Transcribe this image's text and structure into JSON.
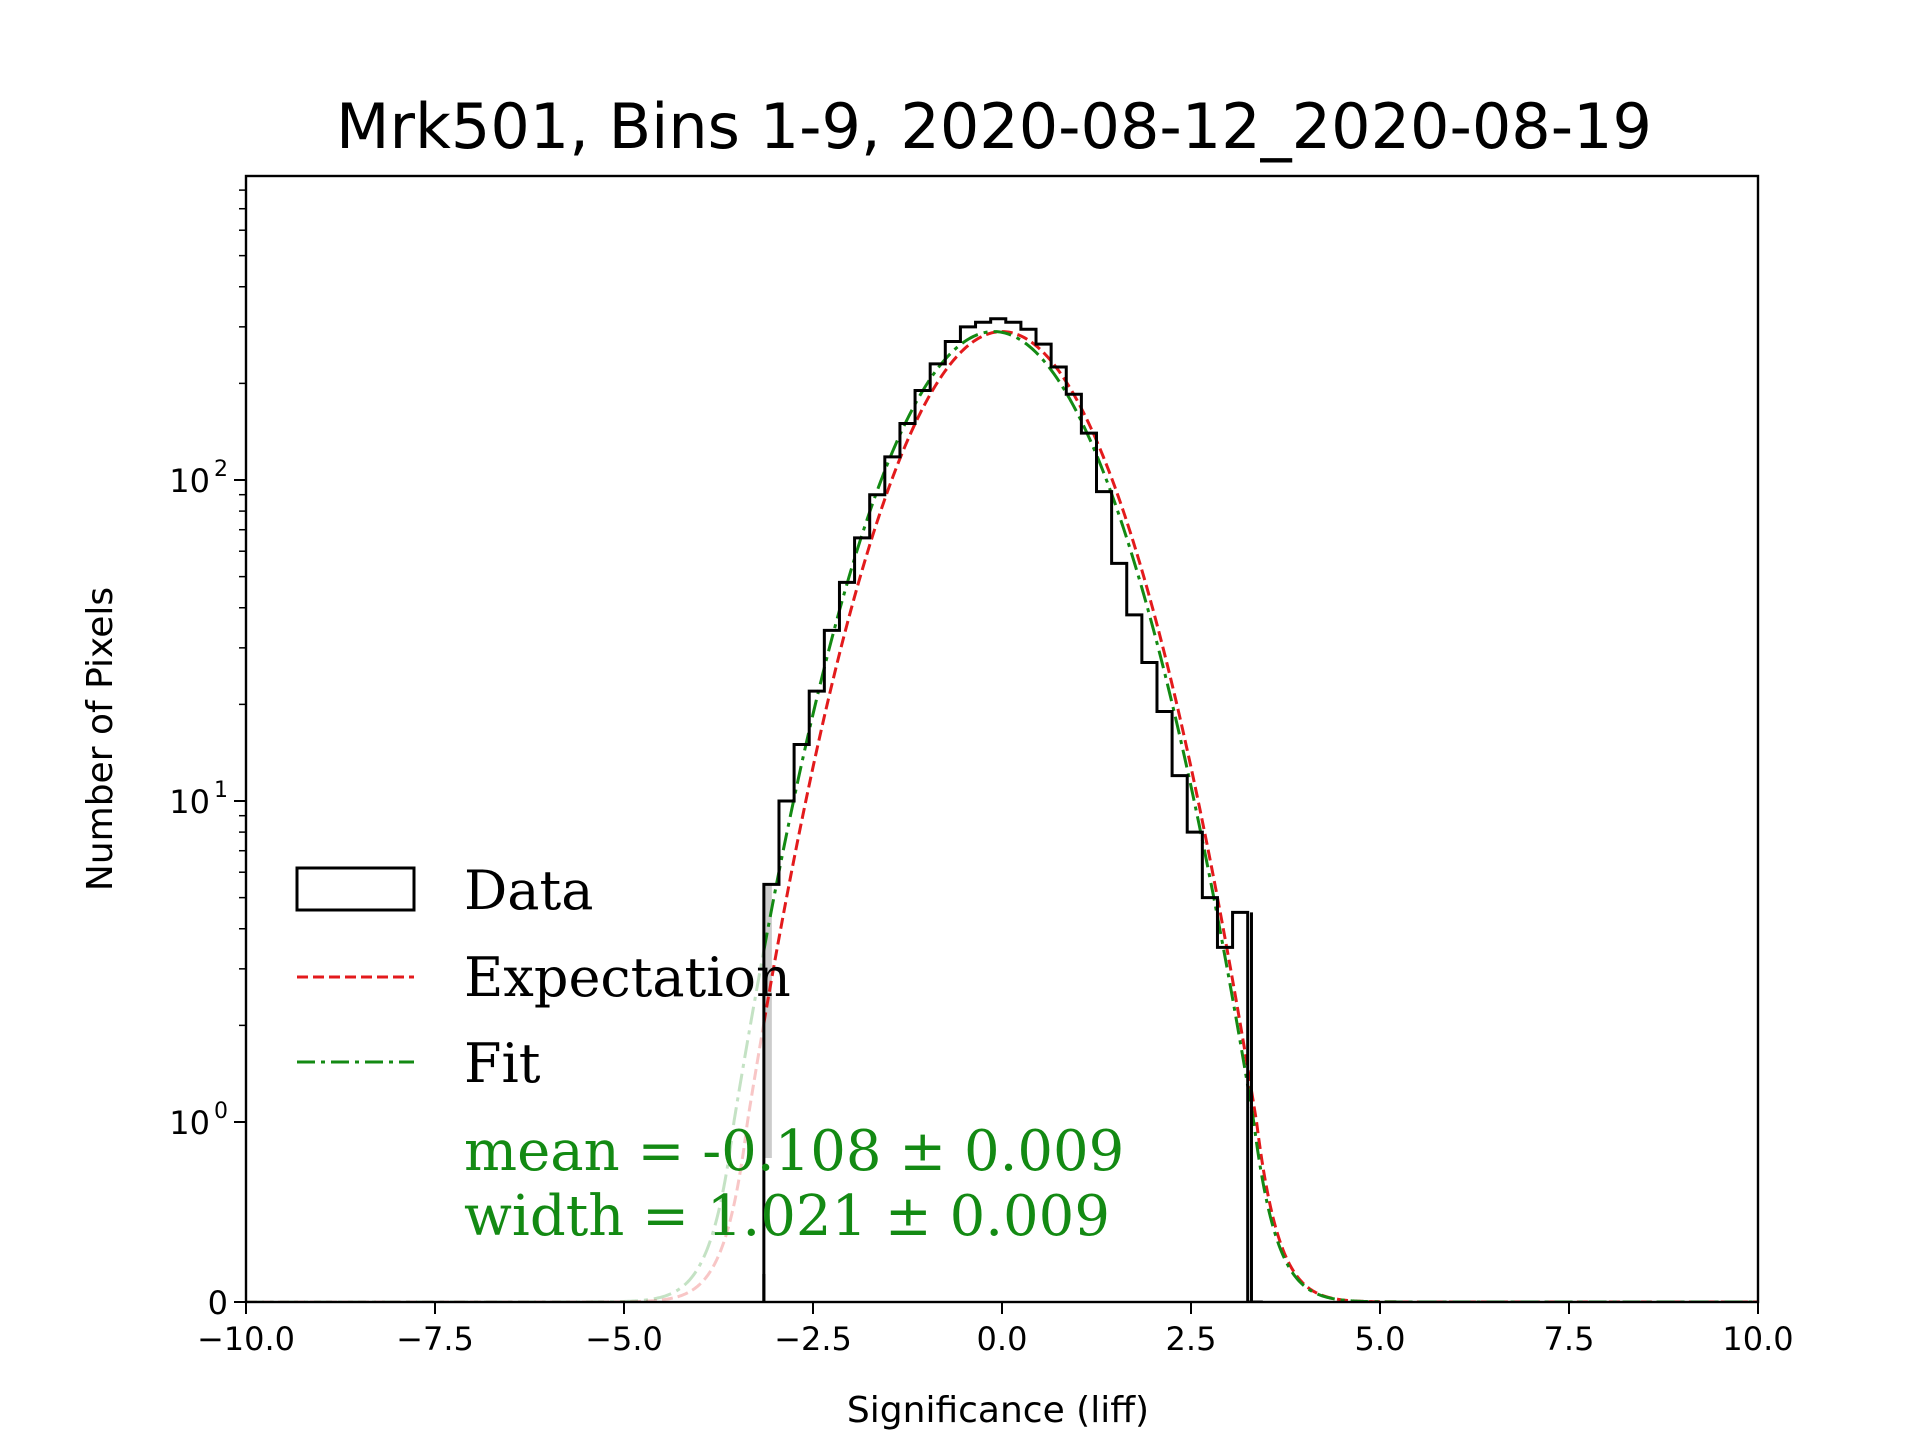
{
  "chart_data": {
    "type": "histogram",
    "title": "Mrk501, Bins 1-9, 2020-08-12_2020-08-19",
    "xlabel": "Significance (liff)",
    "ylabel": "Number of Pixels",
    "xlim": [
      -10,
      10
    ],
    "yscale": "symlog",
    "ylim_top": 700,
    "x_ticks": [
      {
        "value": -10,
        "label": "−10.0"
      },
      {
        "value": -7.5,
        "label": "−7.5"
      },
      {
        "value": -5,
        "label": "−5.0"
      },
      {
        "value": -2.5,
        "label": "−2.5"
      },
      {
        "value": 0,
        "label": "0.0"
      },
      {
        "value": 2.5,
        "label": "2.5"
      },
      {
        "value": 5,
        "label": "5.0"
      },
      {
        "value": 7.5,
        "label": "7.5"
      },
      {
        "value": 10,
        "label": "10.0"
      }
    ],
    "y_ticks": [
      {
        "value": 0,
        "label": "0"
      },
      {
        "value": 1,
        "label": "10",
        "exp": "0"
      },
      {
        "value": 10,
        "label": "10",
        "exp": "1"
      },
      {
        "value": 100,
        "label": "10",
        "exp": "2"
      }
    ],
    "series": [
      {
        "name": "Data",
        "style": "step",
        "color": "#000000",
        "x": [
          -3.15,
          -2.95,
          -2.75,
          -2.55,
          -2.35,
          -2.15,
          -1.95,
          -1.75,
          -1.55,
          -1.35,
          -1.15,
          -0.95,
          -0.75,
          -0.55,
          -0.35,
          -0.15,
          0.05,
          0.25,
          0.45,
          0.65,
          0.85,
          1.05,
          1.25,
          1.45,
          1.65,
          1.85,
          2.05,
          2.25,
          2.45,
          2.65,
          2.85,
          3.05,
          3.25
        ],
        "values": [
          5.5,
          10,
          15,
          22,
          34,
          48,
          66,
          90,
          118,
          150,
          190,
          230,
          270,
          300,
          310,
          318,
          310,
          295,
          265,
          225,
          185,
          140,
          92,
          55,
          38,
          27,
          19,
          12,
          8,
          5,
          3.5,
          4.5,
          0
        ]
      },
      {
        "name": "Expectation",
        "style": "dashed",
        "color": "#e31a1c",
        "mean": 0.0,
        "width": 1.0
      },
      {
        "name": "Fit",
        "style": "dashdot",
        "color": "#138a13",
        "mean": -0.108,
        "width": 1.021
      }
    ],
    "legend": {
      "placement": "lower-left",
      "entries": [
        "Data",
        "Expectation",
        "Fit"
      ]
    },
    "annotations": [
      "mean = -0.108 ± 0.009",
      "width = 1.021 ± 0.009"
    ],
    "annotation_color": "#138a13",
    "data_range": [
      -3.15,
      3.3
    ],
    "peak_amplitude": 290
  }
}
